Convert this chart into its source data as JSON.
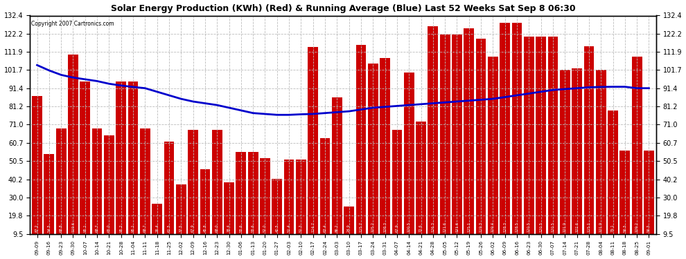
{
  "title": "Solar Energy Production (KWh) (Red) & Running Average (Blue) Last 52 Weeks Sat Sep 8 06:30",
  "copyright": "Copyright 2007 Cartronics.com",
  "bar_color": "#cc0000",
  "line_color": "#0000cc",
  "bg_color": "#ffffff",
  "grid_color": "#bbbbbb",
  "ylim": [
    9.5,
    132.4
  ],
  "yticks": [
    9.5,
    19.8,
    30.0,
    40.2,
    50.5,
    60.7,
    71.0,
    81.2,
    91.4,
    101.7,
    111.9,
    122.2,
    132.4
  ],
  "categories": [
    "09-09",
    "09-16",
    "09-23",
    "09-30",
    "10-07",
    "10-14",
    "10-21",
    "10-28",
    "11-04",
    "11-11",
    "11-18",
    "11-25",
    "12-02",
    "12-09",
    "12-16",
    "12-23",
    "12-30",
    "01-06",
    "01-13",
    "01-20",
    "01-27",
    "02-03",
    "02-10",
    "02-17",
    "02-24",
    "03-03",
    "03-10",
    "03-17",
    "03-24",
    "03-31",
    "04-07",
    "04-14",
    "04-21",
    "04-28",
    "05-05",
    "05-12",
    "05-19",
    "05-26",
    "06-02",
    "06-09",
    "06-16",
    "06-23",
    "06-30",
    "07-07",
    "07-14",
    "07-21",
    "07-28",
    "08-04",
    "08-11",
    "08-18",
    "08-25",
    "09-01"
  ],
  "values": [
    87.2,
    54.5,
    68.8,
    110.6,
    95.1,
    68.7,
    65.0,
    95.2,
    95.1,
    68.7,
    26.4,
    61.5,
    37.5,
    67.9,
    45.8,
    68.0,
    38.4,
    55.6,
    55.6,
    52.0,
    40.5,
    51.4,
    51.3,
    114.7,
    63.4,
    86.2,
    24.9,
    115.7,
    105.2,
    108.3,
    67.9,
    100.5,
    72.6,
    126.3,
    121.6,
    121.6,
    125.1,
    119.3,
    109.4,
    128.3,
    128.5,
    120.5,
    120.5,
    120.5,
    101.9,
    102.6,
    115.1,
    101.9,
    79.1,
    56.5,
    109.2,
    56.5
  ],
  "running_avg": [
    104.5,
    101.5,
    99.0,
    97.5,
    96.5,
    95.5,
    94.0,
    93.0,
    92.2,
    91.5,
    89.5,
    87.5,
    85.5,
    84.0,
    83.0,
    82.0,
    80.5,
    79.0,
    77.5,
    77.0,
    76.5,
    76.5,
    76.8,
    77.0,
    77.5,
    78.0,
    78.5,
    79.5,
    80.5,
    81.0,
    81.5,
    82.0,
    82.5,
    83.0,
    83.5,
    84.0,
    84.5,
    85.0,
    85.5,
    86.5,
    87.5,
    88.5,
    89.5,
    90.5,
    91.0,
    91.5,
    92.0,
    92.2,
    92.3,
    92.3,
    91.5,
    91.5
  ]
}
